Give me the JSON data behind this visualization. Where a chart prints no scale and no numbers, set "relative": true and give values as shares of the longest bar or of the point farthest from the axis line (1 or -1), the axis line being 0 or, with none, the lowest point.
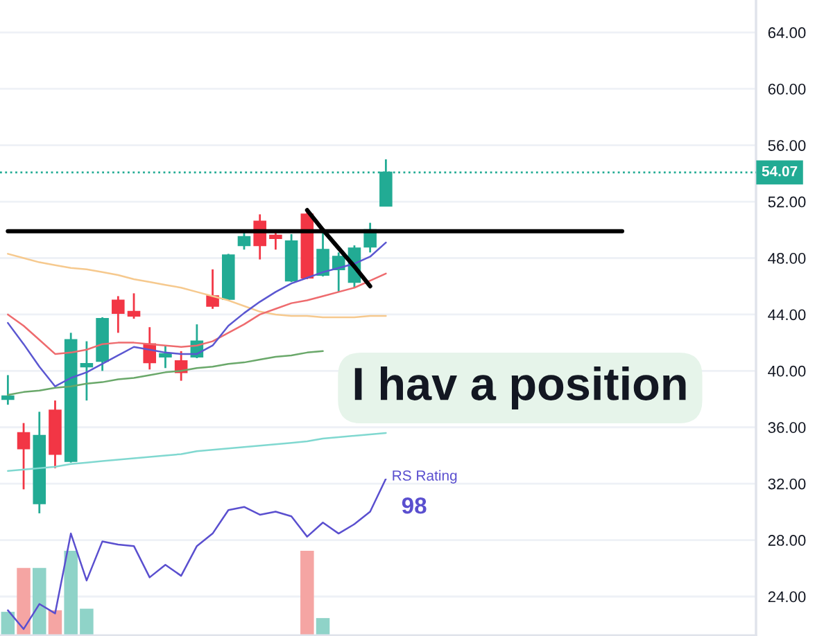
{
  "chart_data": [
    {
      "type": "candlestick",
      "categories": [
        null,
        null,
        null,
        null,
        null,
        null,
        null,
        null,
        null,
        null,
        null,
        null,
        null,
        null,
        null,
        null,
        null,
        null,
        null,
        null,
        null,
        null,
        null,
        null,
        null,
        null,
        null,
        null,
        null,
        null,
        null,
        null,
        null,
        null,
        null,
        null,
        null,
        null,
        null,
        null,
        null,
        null,
        null,
        null,
        null,
        null,
        null,
        null
      ],
      "ohlc": [
        [
          38.0,
          39.7,
          37.6,
          38.2
        ],
        [
          35.6,
          36.3,
          31.6,
          34.5
        ],
        [
          30.6,
          37.1,
          29.9,
          35.4
        ],
        [
          37.2,
          37.9,
          33.1,
          34.1
        ],
        [
          33.6,
          42.7,
          33.5,
          42.2
        ],
        [
          40.3,
          42.1,
          37.9,
          40.5
        ],
        [
          40.7,
          43.8,
          40.0,
          43.7
        ],
        [
          45.0,
          45.3,
          42.7,
          44.1
        ],
        [
          44.2,
          45.5,
          43.7,
          43.9
        ],
        [
          41.9,
          43.1,
          40.1,
          40.6
        ],
        [
          41.0,
          41.8,
          40.2,
          41.2
        ],
        [
          40.7,
          41.4,
          39.3,
          39.9
        ],
        [
          41.0,
          43.3,
          40.9,
          42.1
        ],
        [
          45.3,
          47.2,
          44.4,
          44.6
        ],
        [
          45.1,
          48.3,
          45.0,
          48.2
        ],
        [
          48.9,
          49.9,
          48.6,
          49.5
        ],
        [
          50.6,
          51.1,
          47.9,
          48.9
        ],
        [
          49.6,
          50.0,
          48.6,
          49.4
        ],
        [
          46.4,
          49.7,
          46.3,
          49.2
        ],
        [
          51.1,
          51.3,
          46.5,
          46.6
        ],
        [
          46.8,
          50.0,
          46.7,
          48.6
        ],
        [
          47.2,
          48.4,
          45.6,
          48.1
        ],
        [
          46.3,
          48.9,
          45.9,
          48.7
        ],
        [
          48.8,
          50.5,
          48.4,
          50.0
        ],
        [
          51.7,
          55.0,
          51.7,
          54.07
        ],
        null,
        null,
        null,
        null,
        null,
        null,
        null,
        null,
        null,
        null,
        null,
        null,
        null,
        null,
        null,
        null,
        null,
        null,
        null,
        null,
        null,
        null,
        null
      ],
      "colors": [
        "#22ab94",
        "#f23645",
        "#22ab94",
        "#f23645",
        "#22ab94",
        "#22ab94",
        "#22ab94",
        "#f23645",
        "#f23645",
        "#f23645",
        "#22ab94",
        "#f23645",
        "#22ab94",
        "#f23645",
        "#22ab94",
        "#22ab94",
        "#f23645",
        "#f23645",
        "#22ab94",
        "#f23645",
        "#22ab94",
        "#22ab94",
        "#22ab94",
        "#22ab94",
        "#22ab94",
        null,
        null,
        null,
        null,
        null,
        null,
        null,
        null,
        null,
        null,
        null,
        null,
        null,
        null,
        null,
        null,
        null,
        null,
        null,
        null,
        null,
        null,
        null
      ],
      "series": [
        {
          "type": "line",
          "color": "#f6c98e",
          "values": [
            48.3,
            48.0,
            47.7,
            47.5,
            47.3,
            47.2,
            47.0,
            46.8,
            46.5,
            46.3,
            46.1,
            45.9,
            45.6,
            45.3,
            45.0,
            44.6,
            44.2,
            44.0,
            43.9,
            43.9,
            43.8,
            43.8,
            43.8,
            43.9,
            43.9,
            null,
            null,
            null,
            null,
            null,
            null,
            null,
            null,
            null,
            null,
            null,
            null,
            null,
            null,
            null,
            null,
            null,
            null,
            null,
            null,
            null,
            null,
            null
          ]
        },
        {
          "type": "line",
          "color": "#80d8d0",
          "values": [
            32.9,
            33.0,
            33.1,
            33.2,
            33.4,
            33.5,
            33.6,
            33.7,
            33.8,
            33.9,
            34.0,
            34.1,
            34.3,
            34.4,
            34.5,
            34.6,
            34.7,
            34.8,
            34.9,
            35.0,
            35.2,
            35.3,
            35.4,
            35.5,
            35.6,
            null,
            null,
            null,
            null,
            null,
            null,
            null,
            null,
            null,
            null,
            null,
            null,
            null,
            null,
            null,
            null,
            null,
            null,
            null,
            null,
            null,
            null,
            null
          ]
        },
        {
          "type": "line",
          "color": "#6aa86a",
          "values": [
            38.3,
            38.5,
            38.6,
            38.8,
            38.9,
            39.1,
            39.2,
            39.4,
            39.5,
            39.7,
            39.9,
            40.0,
            40.2,
            40.3,
            40.5,
            40.6,
            40.8,
            41.0,
            41.1,
            41.3,
            41.4,
            null,
            null,
            null,
            null,
            null,
            null,
            null,
            null,
            null,
            null,
            null,
            null,
            null,
            null,
            null,
            null,
            null,
            null,
            null,
            null,
            null,
            null,
            null,
            null,
            null,
            null,
            null
          ]
        },
        {
          "type": "line",
          "color": "#ee6b6e",
          "values": [
            44.0,
            43.2,
            42.2,
            41.2,
            41.3,
            41.5,
            41.9,
            42.0,
            42.0,
            41.9,
            41.8,
            41.7,
            41.8,
            42.1,
            42.7,
            43.3,
            44.0,
            44.4,
            44.8,
            45.0,
            45.3,
            45.6,
            45.9,
            46.4,
            46.9,
            null,
            null,
            null,
            null,
            null,
            null,
            null,
            null,
            null,
            null,
            null,
            null,
            null,
            null,
            null,
            null,
            null,
            null,
            null,
            null,
            null,
            null,
            null
          ]
        },
        {
          "type": "line",
          "color": "#5b57d1",
          "values": [
            43.4,
            41.9,
            40.3,
            38.9,
            39.5,
            39.9,
            40.5,
            41.1,
            41.7,
            41.5,
            41.3,
            41.2,
            41.2,
            41.8,
            43.2,
            44.1,
            44.9,
            45.6,
            46.2,
            46.6,
            47.0,
            47.3,
            47.6,
            48.1,
            49.1,
            null,
            null,
            null,
            null,
            null,
            null,
            null,
            null,
            null,
            null,
            null,
            null,
            null,
            null,
            null,
            null,
            null,
            null,
            null,
            null,
            null,
            null,
            null
          ]
        },
        {
          "type": "line",
          "color": "#000000",
          "values": [
            49.9,
            49.9,
            49.9,
            49.9,
            49.9,
            49.9,
            49.9,
            49.9,
            49.9,
            49.9,
            49.9,
            49.9,
            49.9,
            49.9,
            49.9,
            49.9,
            49.9,
            49.9,
            49.9,
            49.9,
            49.9,
            49.9,
            49.9,
            49.9,
            49.9,
            49.9,
            49.9,
            49.9,
            49.9,
            49.9,
            49.9,
            49.9,
            49.9,
            49.9,
            49.9,
            49.9,
            49.9,
            49.9,
            49.9,
            49.9,
            null,
            null,
            null,
            null,
            null,
            null,
            null,
            null
          ]
        },
        {
          "type": "line",
          "color": "#000000",
          "values": [
            null,
            null,
            null,
            null,
            null,
            null,
            null,
            null,
            null,
            null,
            null,
            null,
            null,
            null,
            null,
            null,
            null,
            null,
            null,
            51.4,
            50.0,
            48.7,
            47.4,
            46.0,
            null,
            null,
            null,
            null,
            null,
            null,
            null,
            null,
            null,
            null,
            null,
            null,
            null,
            null,
            null,
            null,
            null,
            null,
            null,
            null,
            null,
            null,
            null,
            null
          ]
        }
      ],
      "ylim": [
        21.2,
        66.3
      ],
      "yticks": [
        {
          "value": 24,
          "label": "24.00"
        },
        {
          "value": 28,
          "label": "28.00"
        },
        {
          "value": 32,
          "label": "32.00"
        },
        {
          "value": 36,
          "label": "36.00"
        },
        {
          "value": 40,
          "label": "40.00"
        },
        {
          "value": 44,
          "label": "44.00"
        },
        {
          "value": 48,
          "label": "48.00"
        },
        {
          "value": 52,
          "label": "52.00"
        },
        {
          "value": 56,
          "label": "56.00"
        },
        {
          "value": 60,
          "label": "60.00"
        },
        {
          "value": 64,
          "label": "64.00"
        }
      ],
      "grid": "y",
      "ref_lines": [
        {
          "axis": "y",
          "value": 54.07,
          "label": "54.07",
          "color": "#22ab94",
          "line_style": "dotted"
        }
      ],
      "annotations": [
        "I hav a position"
      ]
    },
    {
      "type": "bar",
      "relative": true,
      "categories": [
        null,
        null,
        null,
        null,
        null,
        null,
        null,
        null,
        null,
        null,
        null,
        null,
        null,
        null,
        null,
        null,
        null,
        null,
        null,
        null,
        null,
        null,
        null,
        null,
        null,
        null,
        null,
        null,
        null,
        null,
        null,
        null,
        null,
        null,
        null,
        null,
        null,
        null,
        null,
        null,
        null,
        null,
        null,
        null,
        null,
        null,
        null,
        null
      ],
      "series": [
        {
          "type": "bar",
          "colors": [
            "#8fd3c8",
            "#f5a5a3",
            "#8fd3c8",
            "#f5a5a3",
            "#8fd3c8",
            "#8fd3c8",
            null,
            null,
            null,
            null,
            null,
            null,
            null,
            null,
            null,
            null,
            null,
            null,
            null,
            "#f5a5a3",
            "#8fd3c8",
            null,
            null,
            null,
            null,
            null,
            null,
            null,
            null,
            null,
            null,
            null,
            null,
            null,
            null,
            null,
            null,
            null,
            null,
            null,
            null,
            null,
            null,
            null,
            null,
            null,
            null,
            null
          ],
          "values": [
            0.15,
            0.43,
            0.43,
            0.16,
            0.54,
            0.17,
            null,
            null,
            null,
            null,
            null,
            null,
            null,
            null,
            null,
            null,
            null,
            null,
            null,
            0.54,
            0.11,
            null,
            null,
            null,
            null,
            null,
            null,
            null,
            null,
            null,
            null,
            null,
            null,
            null,
            null,
            null,
            null,
            null,
            null,
            null,
            null,
            null,
            null,
            null,
            null,
            null,
            null,
            null
          ]
        },
        {
          "type": "line",
          "name": "RS Rating",
          "color": "#5a4fcf",
          "values": [
            0.16,
            0.04,
            0.2,
            0.14,
            0.65,
            0.35,
            0.6,
            0.58,
            0.57,
            0.37,
            0.45,
            0.38,
            0.57,
            0.65,
            0.8,
            0.82,
            0.77,
            0.79,
            0.76,
            0.63,
            0.72,
            0.65,
            0.71,
            0.79,
            1.0,
            null,
            null,
            null,
            null,
            null,
            null,
            null,
            null,
            null,
            null,
            null,
            null,
            null,
            null,
            null,
            null,
            null,
            null,
            null,
            null,
            null,
            null,
            null
          ]
        }
      ],
      "annotations": [
        "98"
      ]
    }
  ]
}
